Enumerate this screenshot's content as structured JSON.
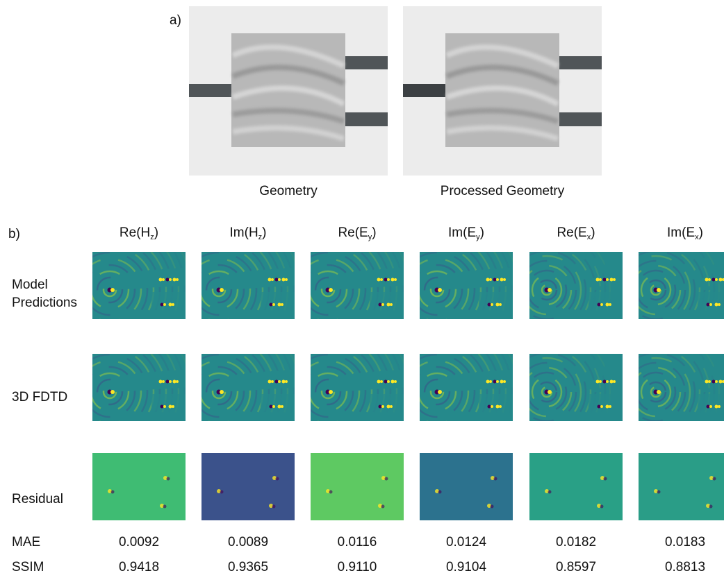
{
  "panel_a": {
    "label": "a)",
    "images": [
      {
        "caption": "Geometry"
      },
      {
        "caption": "Processed Geometry"
      }
    ]
  },
  "panel_b": {
    "label": "b)",
    "columns": [
      {
        "prefix": "Re(H",
        "subscript": "z",
        "suffix": ")"
      },
      {
        "prefix": "Im(H",
        "subscript": "z",
        "suffix": ")"
      },
      {
        "prefix": "Re(E",
        "subscript": "y",
        "suffix": ")"
      },
      {
        "prefix": "Im(E",
        "subscript": "y",
        "suffix": ")"
      },
      {
        "prefix": "Re(E",
        "subscript": "x",
        "suffix": ")"
      },
      {
        "prefix": "Im(E",
        "subscript": "x",
        "suffix": ")"
      }
    ],
    "rows": [
      "Model Predictions",
      "3D FDTD",
      "Residual"
    ],
    "metrics": [
      {
        "name": "MAE",
        "values": [
          "0.0092",
          "0.0089",
          "0.0116",
          "0.0124",
          "0.0182",
          "0.0183"
        ]
      },
      {
        "name": "SSIM",
        "values": [
          "0.9418",
          "0.9365",
          "0.9110",
          "0.9104",
          "0.8597",
          "0.8813"
        ]
      }
    ]
  }
}
